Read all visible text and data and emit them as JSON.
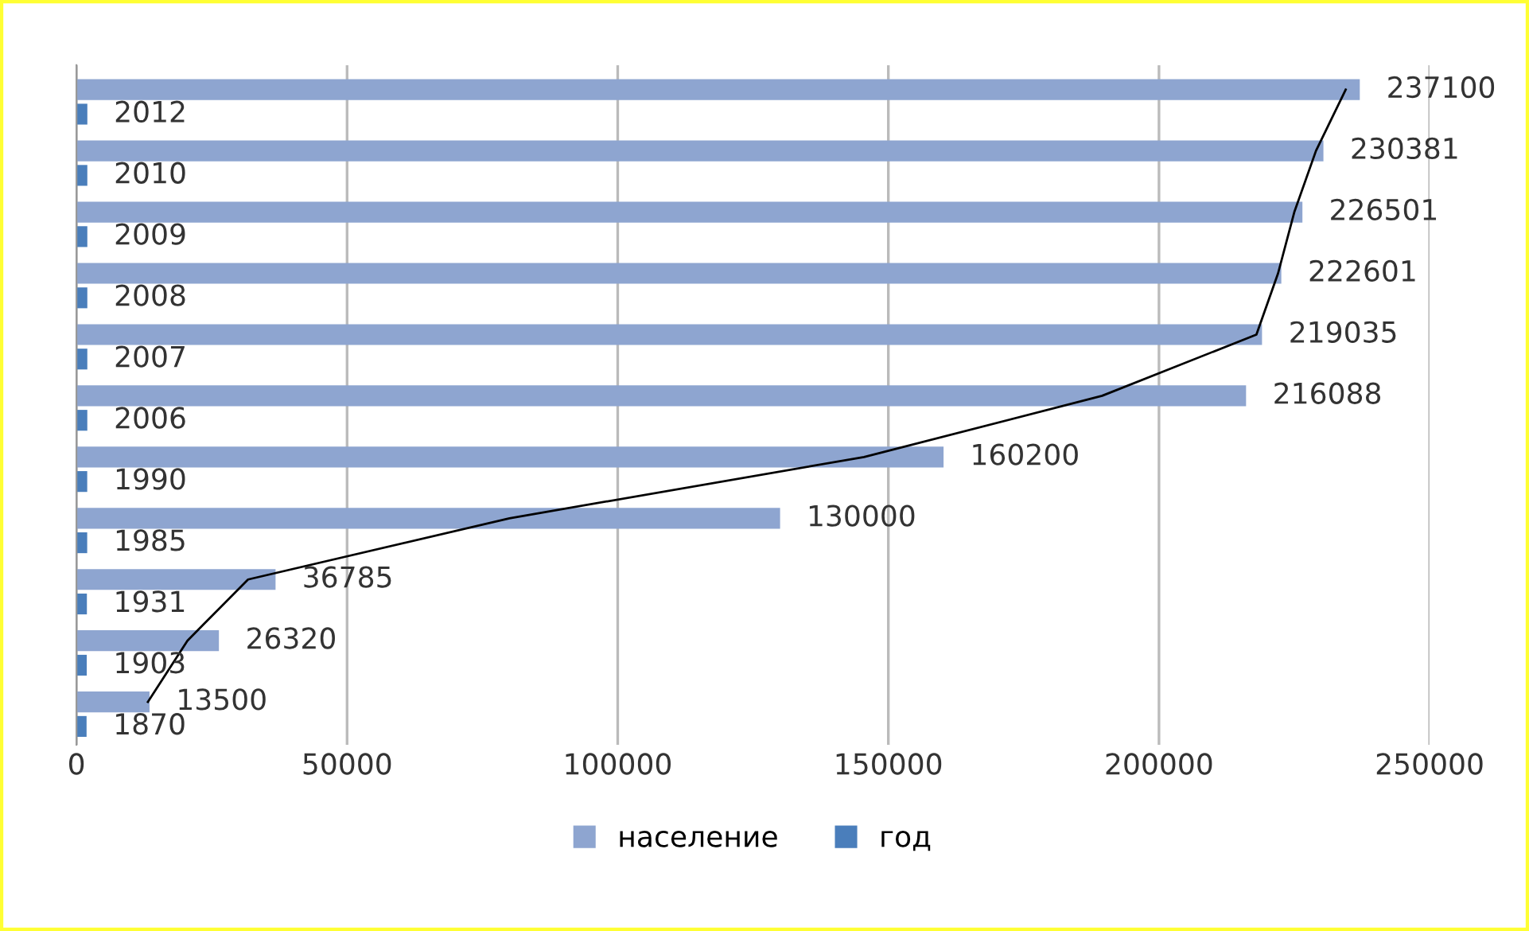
{
  "chart_data": {
    "type": "bar",
    "orientation": "horizontal",
    "categories": [
      null,
      null,
      null,
      null,
      null,
      null,
      null,
      null,
      null,
      null,
      null
    ],
    "series": [
      {
        "name": "население",
        "color": "#8ea5d0",
        "values": [
          237100,
          230381,
          226501,
          222601,
          219035,
          216088,
          160200,
          130000,
          36785,
          26320,
          13500
        ],
        "value_labels": [
          "237100",
          "230381",
          "226501",
          "222601",
          "219035",
          "216088",
          "160200",
          "130000",
          "36785",
          "26320",
          "13500"
        ]
      },
      {
        "name": "год",
        "color": "#4a7ebb",
        "values": [
          2012,
          2010,
          2009,
          2008,
          2007,
          2006,
          1990,
          1985,
          1931,
          1903,
          1870
        ],
        "value_labels": [
          "2012",
          "2010",
          "2009",
          "2008",
          "2007",
          "2006",
          "1990",
          "1985",
          "1931",
          "1903",
          "1870"
        ]
      },
      {
        "type": "line",
        "color": "#000000",
        "values": [
          234500,
          229000,
          225000,
          222000,
          218000,
          189500,
          145500,
          80000,
          31700,
          20500,
          13200
        ]
      }
    ],
    "xlim": [
      0,
      250000
    ],
    "xticks": [
      0,
      50000,
      100000,
      150000,
      200000,
      250000
    ],
    "grid": "x",
    "legend": "bottom"
  }
}
